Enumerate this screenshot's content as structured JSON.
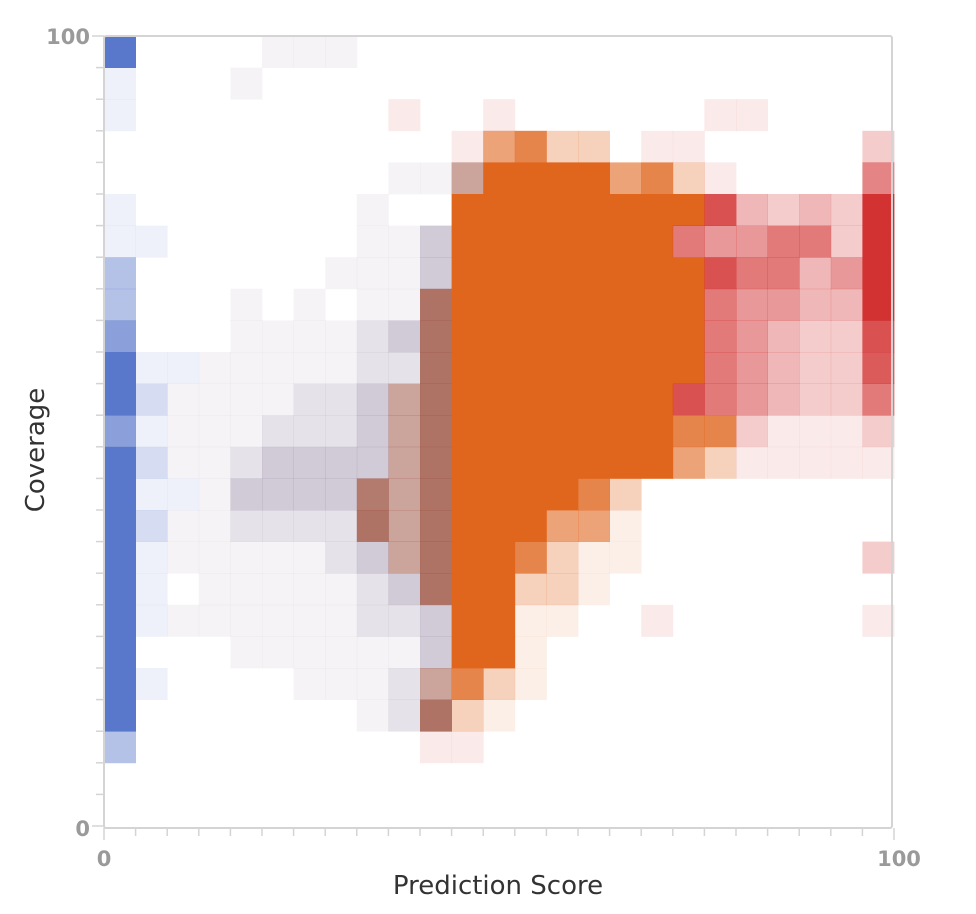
{
  "chart_data": {
    "type": "heatmap",
    "title": "",
    "xlabel": "Prediction Score",
    "ylabel": "Coverage",
    "xlim": [
      0,
      100
    ],
    "ylim": [
      0,
      100
    ],
    "x_tick_labels": [
      "0",
      "100"
    ],
    "y_tick_labels": [
      "0",
      "100"
    ],
    "grid": false,
    "legend": "none",
    "n_cols": 25,
    "n_rows": 25,
    "row_order": "top-to-bottom (row 0 = coverage 96-100)",
    "value_range": [
      -1,
      1
    ],
    "value_note": "negative = blue, positive near 0.5 = orange, positive near 1 = red (estimated intensity)",
    "colors": {
      "blue": "#5a78cb",
      "orange_mid": "#e0661e",
      "brown_mid": "#a05a4a",
      "red": "#d23232",
      "muted_purple": "#9a8aa6",
      "axis": "#d4d4d4",
      "tick_label": "#9a9a9a",
      "axis_title": "#333333"
    },
    "grid_spec": [
      "B|.|.|.|.|m1|m1|m1|.|.|.|.|.|.|.|.|.|.|.|.|.|.|.|.|.",
      "b1|.|.|.|m1|.|.|.|.|.|.|.|.|.|.|.|.|.|.|.|.|.|.|.|.",
      "b1|.|.|.|.|.|.|.|.|r1|.|.|r1|.|.|.|.|.|.|r1|r1|.|.|.|.",
      ".|.|.|.|.|.|.|.|.|.|.|r1|o3|o4|o2|o2|.|r1|r1|.|.|.|.|.|r2",
      ".|.|.|.|.|.|.|.|.|m1|m1|m4|O|O|O|O|o3|o4|o2|r1|.|.|.|.|r6",
      "b1|.|.|.|.|.|.|.|m1|.|.|O|O|O|O|O|O|O|O|r7|r3|r2|r3|r2|R",
      "b1|b1|.|.|.|.|.|.|m1|m1|m3|O|O|O|O|O|O|O|r5|r4|r4|r5|r5|r2|R",
      "b3|.|.|.|.|.|.|m1|m1|m1|m3|O|O|O|O|O|O|O|O|r7|r5|r5|r3|r4|R",
      "b3|.|.|.|m1|.|m1|.|m1|m1|M|O|O|O|O|O|O|O|O|r5|r4|r4|r3|r3|R",
      "b4|.|.|.|m1|m1|m1|m1|m2|m3|M|O|O|O|O|O|O|O|O|r5|r4|r3|r2|r2|r7",
      "B|b1|b1|m1|m1|m1|m1|m1|m2|m2|M|O|O|O|O|O|O|O|O|r5|r4|r3|r2|r2|r8",
      "B|b2|m1|m1|m1|m1|m2|m2|m3|m4|M|O|O|O|O|O|O|O|r7|r5|r4|r3|r2|r2|r5",
      "b4|b1|m1|m1|m1|m2|m2|m2|m3|m4|M|O|O|O|O|O|O|O|o4|o4|r2|r1|r1|r1|r2",
      "B|b2|m1|m1|m2|m3|m3|m3|m3|m4|M|O|O|O|O|O|O|O|o3|o2|r1|r1|r1|r1|r1",
      "B|b1|b1|m1|m3|m3|m3|m3|m5|m4|M|O|O|O|O|o4|o2|.|.|.|.|.|.|.|.",
      "B|b2|m1|m1|m2|m2|m2|m2|M|m4|M|O|O|O|o3|o3|o1|.|.|.|.|.|.|.|.",
      "B|b1|m1|m1|m1|m1|m1|m2|m3|m4|M|O|O|o4|o2|o1|o1|.|.|.|.|.|.|.|r2",
      "B|b1|.|m1|m1|m1|m1|m1|m2|m3|M|O|O|o2|o2|o1|.|.|.|.|.|.|.|.|.",
      "B|b1|m1|m1|m1|m1|m1|m1|m2|m2|m3|O|O|o1|o1|.|.|r1|.|.|.|.|.|.|r1",
      "B|.|.|.|m1|m1|m1|m1|m1|m1|m3|O|O|o1|.|.|.|.|.|.|.|.|.|.|.",
      "B|b1|.|.|.|.|m1|m1|m1|m2|m4|o4|o2|o1|.|.|.|.|.|.|.|.|.|.|.",
      "B|.|.|.|.|.|.|.|m1|m2|M|o2|o1|.|.|.|.|.|.|.|.|.|.|.|.",
      "b3|.|.|.|.|.|.|.|.|.|r1|r1|.|.|.|.|.|.|.|.|.|.|.|.|.",
      ".|.|.|.|.|.|.|.|.|.|.|.|.|.|.|.|.|.|.|.|.|.|.|.|.",
      ".|.|.|.|.|.|.|.|.|.|.|.|.|.|.|.|.|.|.|.|.|.|.|.|."
    ]
  }
}
